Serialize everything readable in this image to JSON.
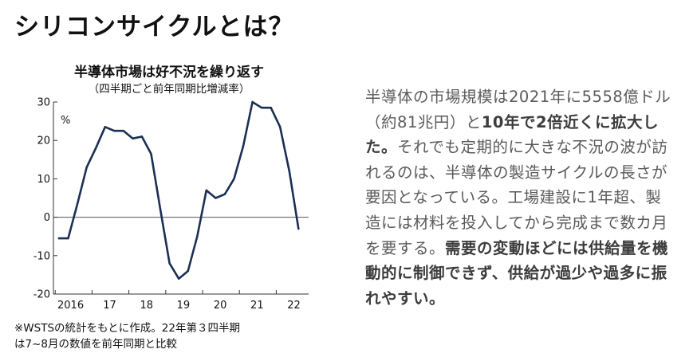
{
  "page_title": "シリコンサイクルとは？",
  "chart_data": {
    "type": "line",
    "title": "半導体市場は好不況を繰り返す",
    "subtitle": "（四半期ごと前年同期比増減率）",
    "ylabel": "%",
    "ylim": [
      -20,
      30
    ],
    "yticks": [
      "30",
      "20",
      "10",
      "0",
      "-10",
      "-20"
    ],
    "xticks": [
      "2016",
      "17",
      "18",
      "19",
      "20",
      "21",
      "22"
    ],
    "grid": false,
    "series": [
      {
        "values": [
          -5.5,
          -5.5,
          3.5,
          13,
          18,
          23.5,
          22.5,
          22.5,
          20.5,
          21,
          16.5,
          2,
          -12,
          -16,
          -14,
          -5,
          7,
          5,
          6,
          10,
          18.5,
          30,
          28.5,
          28.5,
          23.5,
          12,
          -3
        ]
      }
    ],
    "color": "#1b2f55"
  },
  "footnote": {
    "line1": "※WSTSの統計をもとに作成。22年第３四半期",
    "line2": "は7~8月の数値を前年同期と比較"
  },
  "body_text": {
    "p1": "半導体の市場規模は2021年に5558億ドル（約81兆円）と",
    "b1": "10年で2倍近くに拡大した。",
    "p2": "それでも定期的に大きな不況の波が訪れるのは、半導体の製造サイクルの長さが要因となっている。工場建設に1年超、製造には材料を投入してから完成まで数カ月を要する。",
    "b2": "需要の変動ほどには供給量を機動的に制御できず、供給が過少や過多に振れやすい。"
  }
}
